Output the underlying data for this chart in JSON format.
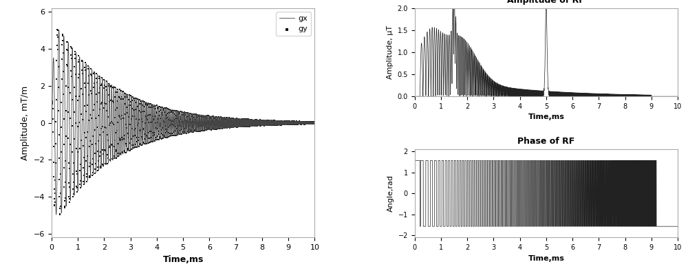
{
  "left_plot": {
    "xlabel": "Time,ms",
    "ylabel": "Amplitude, mT/m",
    "xlim": [
      0,
      10
    ],
    "ylim": [
      -6,
      6
    ],
    "yticks": [
      -6,
      -4,
      -2,
      0,
      2,
      4,
      6
    ],
    "xticks": [
      0,
      1,
      2,
      3,
      4,
      5,
      6,
      7,
      8,
      9,
      10
    ],
    "legend_gx": "gx",
    "legend_gy": "gy",
    "gx_color": "#444444",
    "gy_color": "#111111",
    "bg_color": "#ffffff"
  },
  "top_right_plot": {
    "title": "Amplitude of RF",
    "xlabel": "Time,ms",
    "ylabel": "Amplitude, μT",
    "xlim": [
      0,
      10
    ],
    "ylim": [
      0,
      2
    ],
    "yticks": [
      0,
      0.5,
      1.0,
      1.5,
      2.0
    ],
    "xticks": [
      0,
      1,
      2,
      3,
      4,
      5,
      6,
      7,
      8,
      9,
      10
    ],
    "line_color": "#222222"
  },
  "bottom_right_plot": {
    "title": "Phase of RF",
    "xlabel": "Time,ms",
    "ylabel": "Angle,rad",
    "xlim": [
      0,
      10
    ],
    "ylim": [
      -2,
      2
    ],
    "yticks": [
      -2,
      -1,
      0,
      1,
      2
    ],
    "xticks": [
      0,
      1,
      2,
      3,
      4,
      5,
      6,
      7,
      8,
      9,
      10
    ],
    "line_color": "#222222"
  },
  "bg_color": "#ffffff",
  "figure_bg": "#ffffff"
}
